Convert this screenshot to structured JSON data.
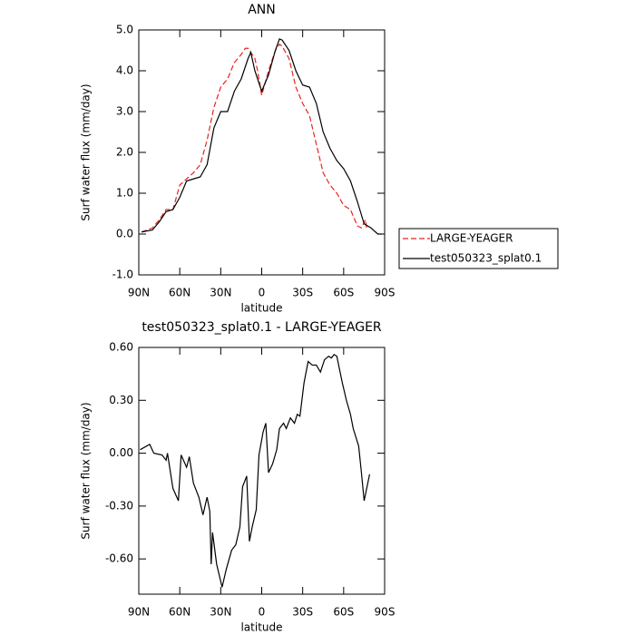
{
  "chart_data": [
    {
      "type": "line",
      "title": "ANN",
      "xlabel": "latitude",
      "ylabel": "Surf water flux (mm/day)",
      "xlim": [
        90,
        -90
      ],
      "xticks": [
        {
          "value": 90,
          "label": "90N"
        },
        {
          "value": 60,
          "label": "60N"
        },
        {
          "value": 30,
          "label": "30N"
        },
        0,
        {
          "value": -30,
          "label": "30S"
        },
        {
          "value": -60,
          "label": "60S"
        },
        {
          "value": -90,
          "label": "90S"
        }
      ],
      "ylim": [
        -1,
        5
      ],
      "yticks": [
        {
          "value": -1,
          "label": "-1.0"
        },
        {
          "value": 0,
          "label": "0.0"
        },
        {
          "value": 1,
          "label": "1.0"
        },
        {
          "value": 2,
          "label": "2.0"
        },
        {
          "value": 3,
          "label": "3.0"
        },
        {
          "value": 4,
          "label": "4.0"
        },
        {
          "value": 5,
          "label": "5.0"
        }
      ],
      "legend": "right",
      "series": [
        {
          "name": "LARGE-YEAGER",
          "color": "#e8231f",
          "line_style": "dashed",
          "x": [
            88,
            80,
            75,
            70,
            65,
            60,
            55,
            50,
            45,
            40,
            35,
            30,
            25,
            20,
            15,
            12,
            10,
            5,
            3,
            0,
            -5,
            -10,
            -13,
            -15,
            -20,
            -25,
            -30,
            -35,
            -40,
            -45,
            -50,
            -55,
            -60,
            -65,
            -70,
            -73,
            -76,
            -77
          ],
          "values": [
            0.05,
            0.15,
            0.35,
            0.6,
            0.6,
            1.2,
            1.35,
            1.5,
            1.7,
            2.3,
            3.1,
            3.6,
            3.8,
            4.2,
            4.4,
            4.55,
            4.55,
            4.3,
            4.0,
            3.4,
            4.0,
            4.5,
            4.65,
            4.6,
            4.3,
            3.6,
            3.2,
            2.9,
            2.2,
            1.5,
            1.2,
            1.0,
            0.7,
            0.6,
            0.2,
            0.15,
            0.35,
            0.1
          ]
        },
        {
          "name": "test050323_splat0.1",
          "color": "#000000",
          "line_style": "solid",
          "x": [
            88,
            80,
            75,
            70,
            65,
            60,
            55,
            50,
            45,
            40,
            35,
            30,
            25,
            20,
            15,
            10,
            8,
            5,
            0,
            -5,
            -10,
            -13,
            -15,
            -20,
            -25,
            -30,
            -35,
            -40,
            -45,
            -50,
            -55,
            -60,
            -65,
            -70,
            -75,
            -80,
            -85,
            -88
          ],
          "values": [
            0.05,
            0.1,
            0.3,
            0.55,
            0.6,
            0.9,
            1.3,
            1.35,
            1.4,
            1.7,
            2.6,
            3.0,
            3.0,
            3.5,
            3.8,
            4.3,
            4.45,
            4.0,
            3.5,
            3.9,
            4.5,
            4.78,
            4.75,
            4.5,
            4.0,
            3.65,
            3.6,
            3.2,
            2.5,
            2.1,
            1.8,
            1.6,
            1.3,
            0.8,
            0.25,
            0.15,
            0.0,
            0.0
          ]
        }
      ]
    },
    {
      "type": "line",
      "title": "test050323_splat0.1 - LARGE-YEAGER",
      "xlabel": "latitude",
      "ylabel": "Surf water flux (mm/day)",
      "xlim": [
        90,
        -90
      ],
      "xticks": [
        {
          "value": 90,
          "label": "90N"
        },
        {
          "value": 60,
          "label": "60N"
        },
        {
          "value": 30,
          "label": "30N"
        },
        0,
        {
          "value": -30,
          "label": "30S"
        },
        {
          "value": -60,
          "label": "60S"
        },
        {
          "value": -90,
          "label": "90S"
        }
      ],
      "ylim": [
        -0.8,
        0.6
      ],
      "yticks": [
        {
          "value": -0.6,
          "label": "-0.60"
        },
        {
          "value": -0.3,
          "label": "-0.30"
        },
        {
          "value": 0,
          "label": "0.00"
        },
        {
          "value": 0.3,
          "label": "0.30"
        },
        {
          "value": 0.6,
          "label": "0.60"
        }
      ],
      "color": "#000000",
      "x": [
        89,
        82,
        79,
        73,
        70,
        69,
        67,
        65,
        61,
        59,
        55,
        53,
        50,
        46,
        43,
        40,
        38,
        37,
        36,
        33,
        29,
        26,
        22,
        19,
        16,
        14,
        11,
        9,
        7,
        4,
        2,
        -1,
        -3,
        -5,
        -8,
        -11,
        -13,
        -16,
        -18,
        -21,
        -24,
        -26,
        -28,
        -31,
        -34,
        -37,
        -40,
        -43,
        -46,
        -49,
        -51,
        -53,
        -55,
        -59,
        -62,
        -65,
        -67,
        -71,
        -73,
        -75,
        -79
      ],
      "values": [
        0.02,
        0.05,
        0.0,
        -0.01,
        -0.04,
        0.0,
        -0.1,
        -0.2,
        -0.27,
        -0.01,
        -0.08,
        -0.02,
        -0.17,
        -0.25,
        -0.35,
        -0.25,
        -0.33,
        -0.63,
        -0.45,
        -0.63,
        -0.76,
        -0.66,
        -0.55,
        -0.52,
        -0.42,
        -0.19,
        -0.13,
        -0.5,
        -0.42,
        -0.32,
        -0.01,
        0.12,
        0.17,
        -0.11,
        -0.06,
        0.02,
        0.14,
        0.17,
        0.14,
        0.2,
        0.17,
        0.22,
        0.21,
        0.4,
        0.52,
        0.5,
        0.5,
        0.46,
        0.53,
        0.55,
        0.54,
        0.56,
        0.55,
        0.4,
        0.3,
        0.22,
        0.14,
        0.04,
        -0.11,
        -0.27,
        -0.12
      ]
    }
  ]
}
